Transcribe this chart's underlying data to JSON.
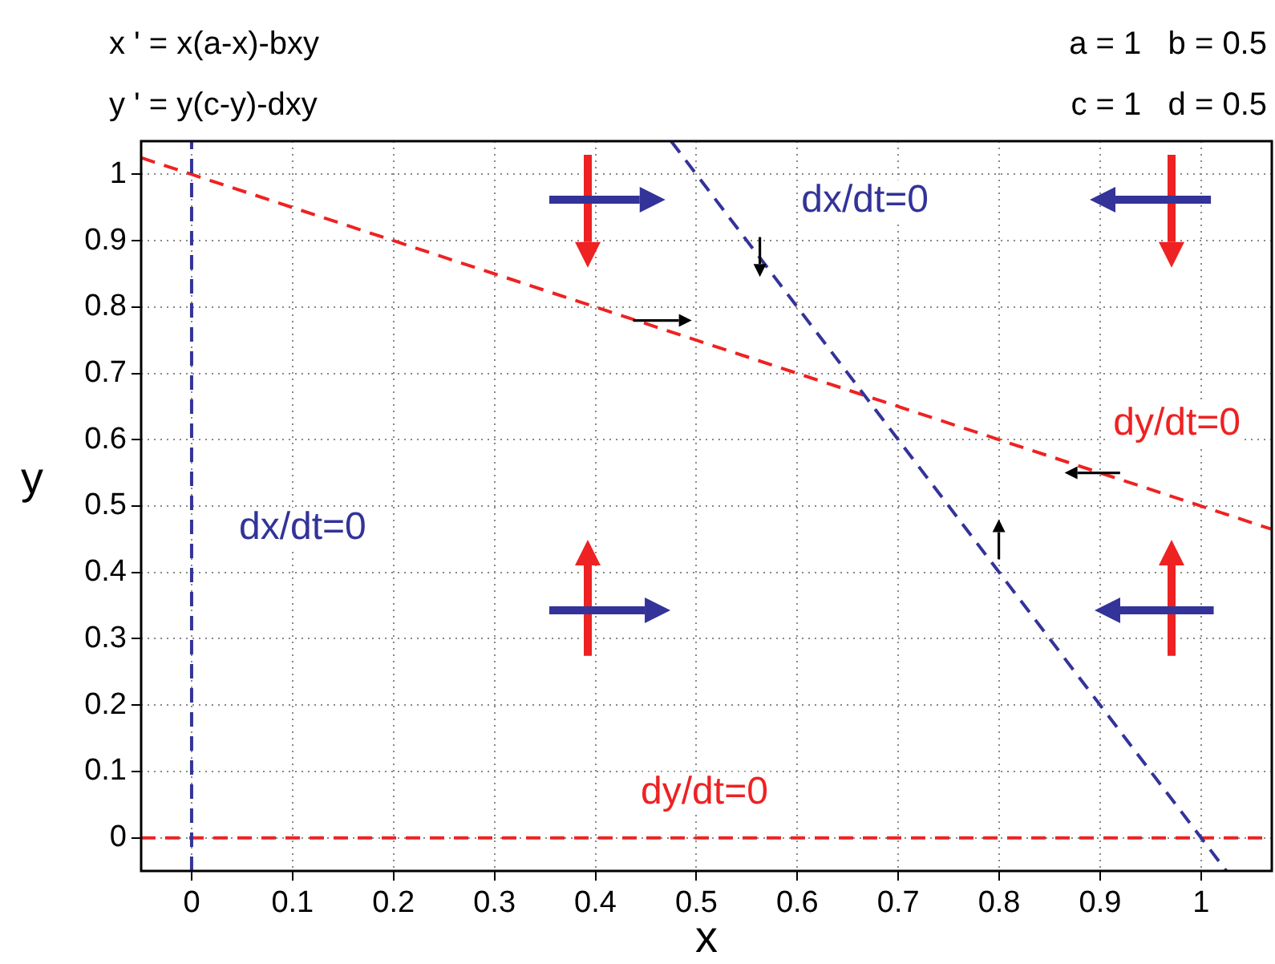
{
  "chart_data": {
    "type": "line",
    "title": "x ' = x(a-x)-bxy",
    "subtitle": "y ' = y(c-y)-dxy",
    "xlabel": "x",
    "ylabel": "y",
    "annotations": [
      "a = 1   b = 0.5",
      "c = 1   d = 0.5",
      "dx/dt=0",
      "dx/dt=0",
      "dy/dt=0",
      "dy/dt=0"
    ],
    "series": [
      {
        "color": "#333399",
        "line_style": "dashed",
        "x": [
          0,
          0
        ],
        "values": [
          -0.05,
          1.05
        ]
      },
      {
        "color": "#333399",
        "line_style": "dashed",
        "x": [
          0.475,
          1.025
        ],
        "values": [
          1.05,
          -0.05
        ]
      },
      {
        "color": "#ee2222",
        "line_style": "dashed",
        "x": [
          -0.05,
          1.07
        ],
        "values": [
          1.025,
          0.465
        ]
      },
      {
        "color": "#ee2222",
        "line_style": "dashed",
        "x": [
          -0.05,
          1.07
        ],
        "values": [
          0,
          0
        ]
      }
    ],
    "xlim": [
      -0.05,
      1.07
    ],
    "ylim": [
      -0.05,
      1.05
    ],
    "xticks": [
      0,
      0.1,
      0.2,
      0.3,
      0.4,
      0.5,
      0.6,
      0.7,
      0.8,
      0.9,
      1
    ],
    "yticks": [
      0,
      0.1,
      0.2,
      0.3,
      0.4,
      0.5,
      0.6,
      0.7,
      0.8,
      0.9,
      1
    ],
    "grid": true,
    "legend": false,
    "marker": "none"
  }
}
